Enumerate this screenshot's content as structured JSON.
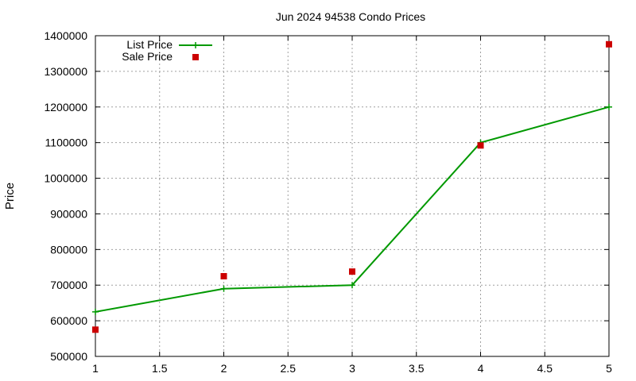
{
  "chart_data": {
    "type": "line",
    "title": "Jun 2024 94538 Condo Prices",
    "xlabel": "",
    "ylabel": "Price",
    "xlim": [
      1,
      5
    ],
    "ylim": [
      500000,
      1400000
    ],
    "x_ticks": [
      1,
      1.5,
      2,
      2.5,
      3,
      3.5,
      4,
      4.5,
      5
    ],
    "x_tick_labels": [
      "1",
      "1.5",
      "2",
      "2.5",
      "3",
      "3.5",
      "4",
      "4.5",
      "5"
    ],
    "y_ticks": [
      500000,
      600000,
      700000,
      800000,
      900000,
      1000000,
      1100000,
      1200000,
      1300000,
      1400000
    ],
    "y_tick_labels": [
      "500000",
      "600000",
      "700000",
      "800000",
      "900000",
      "1000000",
      "1100000",
      "1200000",
      "1300000",
      "1400000"
    ],
    "grid": true,
    "legend_position": "top-left",
    "series": [
      {
        "name": "List Price",
        "style": "linespoints",
        "color": "#009900",
        "marker": "plus",
        "x": [
          1,
          2,
          3,
          4,
          5
        ],
        "y": [
          625000,
          690000,
          700000,
          1100000,
          1200000
        ]
      },
      {
        "name": "Sale Price",
        "style": "points",
        "color": "#cc0000",
        "marker": "square",
        "x": [
          1,
          2,
          3,
          4,
          5
        ],
        "y": [
          575000,
          725000,
          738000,
          1092000,
          1376000
        ]
      }
    ]
  }
}
